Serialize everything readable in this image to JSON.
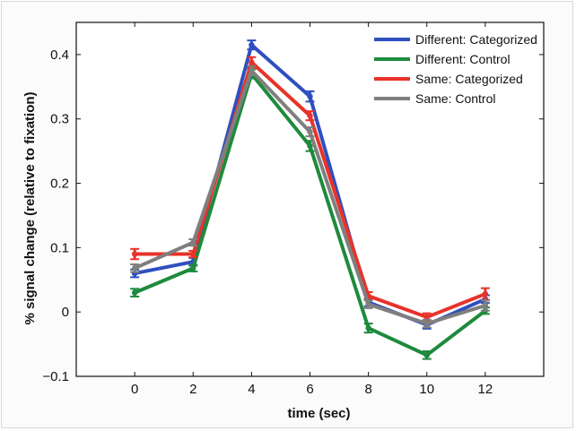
{
  "chart_data": {
    "type": "line",
    "title": "",
    "xlabel": "time (sec)",
    "ylabel": "% signal change (relative to fixation)",
    "x": [
      0,
      2,
      4,
      6,
      8,
      10,
      12
    ],
    "xlim": [
      -2,
      14
    ],
    "ylim": [
      -0.1,
      0.45
    ],
    "xticks": [
      0,
      2,
      4,
      6,
      8,
      10,
      12
    ],
    "yticks": [
      -0.1,
      0,
      0.1,
      0.2,
      0.3,
      0.4
    ],
    "ytick_labels": [
      "−0.1",
      "0",
      "0.1",
      "0.2",
      "0.3",
      "0.4"
    ],
    "grid": false,
    "legend_position": "top-right",
    "error_bars": true,
    "series": [
      {
        "name": "Different: Categorized",
        "color": "#2f4fbf",
        "values": [
          0.06,
          0.078,
          0.415,
          0.335,
          0.015,
          -0.02,
          0.02
        ],
        "errors": [
          0.006,
          0.006,
          0.007,
          0.008,
          0.006,
          0.006,
          0.006
        ]
      },
      {
        "name": "Different: Control",
        "color": "#1e8a3c",
        "values": [
          0.03,
          0.068,
          0.37,
          0.258,
          -0.025,
          -0.067,
          0.002
        ],
        "errors": [
          0.006,
          0.005,
          0.007,
          0.008,
          0.007,
          0.006,
          0.005
        ]
      },
      {
        "name": "Same: Categorized",
        "color": "#e8322a",
        "values": [
          0.09,
          0.09,
          0.388,
          0.305,
          0.025,
          -0.008,
          0.028
        ],
        "errors": [
          0.008,
          0.005,
          0.008,
          0.007,
          0.006,
          0.006,
          0.009
        ]
      },
      {
        "name": "Same: Control",
        "color": "#7f7f7f",
        "values": [
          0.068,
          0.108,
          0.375,
          0.28,
          0.012,
          -0.018,
          0.01
        ],
        "errors": [
          0.006,
          0.005,
          0.007,
          0.007,
          0.006,
          0.006,
          0.008
        ]
      }
    ]
  }
}
